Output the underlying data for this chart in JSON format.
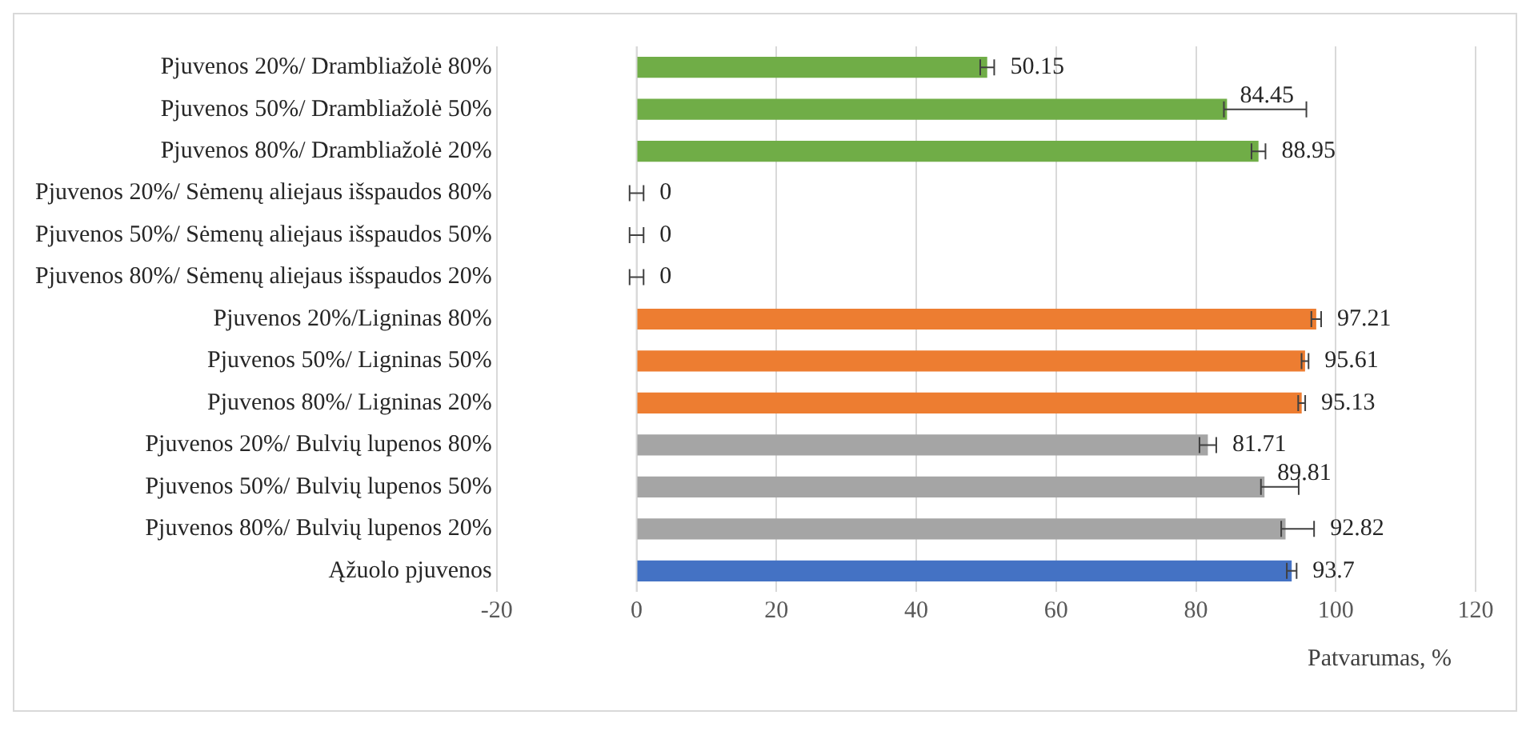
{
  "chart_data": {
    "type": "bar",
    "orientation": "horizontal",
    "xlabel": "Patvarumas, %",
    "categories": [
      "Pjuvenos 20%/ Drambliažolė 80%",
      "Pjuvenos 50%/ Drambliažolė 50%",
      "Pjuvenos 80%/ Drambliažolė 20%",
      "Pjuvenos 20%/ Sėmenų aliejaus išspaudos 80%",
      "Pjuvenos 50%/ Sėmenų aliejaus išspaudos 50%",
      "Pjuvenos 80%/ Sėmenų aliejaus išspaudos 20%",
      "Pjuvenos 20%/Ligninas 80%",
      "Pjuvenos 50%/ Ligninas 50%",
      "Pjuvenos 80%/ Ligninas 20%",
      "Pjuvenos 20%/ Bulvių lupenos 80%",
      "Pjuvenos 50%/ Bulvių lupenos 50%",
      "Pjuvenos 80%/ Bulvių lupenos 20%",
      "Ąžuolo pjuvenos"
    ],
    "values": [
      50.15,
      84.45,
      88.95,
      0,
      0,
      0,
      97.21,
      95.61,
      95.13,
      81.71,
      89.81,
      92.82,
      93.7
    ],
    "errors": [
      1,
      [
        84,
        95.8
      ],
      1,
      1,
      1,
      1,
      0.7,
      0.5,
      0.5,
      1.2,
      [
        89.3,
        94.7
      ],
      [
        92.2,
        96.9
      ],
      0.7
    ],
    "colors": [
      "#70ad47",
      "#70ad47",
      "#70ad47",
      "#70ad47",
      "#70ad47",
      "#70ad47",
      "#ed7d31",
      "#ed7d31",
      "#ed7d31",
      "#a5a5a5",
      "#a5a5a5",
      "#a5a5a5",
      "#4472c4"
    ],
    "data_labels": true,
    "xlim": [
      -20,
      120
    ],
    "xticks": [
      -20,
      0,
      20,
      40,
      60,
      80,
      100,
      120
    ],
    "grid": "x",
    "legend": false
  }
}
